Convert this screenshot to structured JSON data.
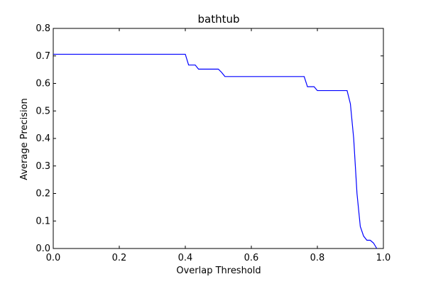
{
  "chart_data": {
    "type": "line",
    "title": "bathtub",
    "xlabel": "Overlap Threshold",
    "ylabel": "Average Precision",
    "xlim": [
      0.0,
      1.0
    ],
    "ylim": [
      0.0,
      0.8
    ],
    "xticks": [
      "0.0",
      "0.2",
      "0.4",
      "0.6",
      "0.8",
      "1.0"
    ],
    "yticks": [
      "0.0",
      "0.1",
      "0.2",
      "0.3",
      "0.4",
      "0.5",
      "0.6",
      "0.7",
      "0.8"
    ],
    "grid": false,
    "line_color": "#0000ff",
    "series": [
      {
        "x": [
          0.0,
          0.4,
          0.41,
          0.43,
          0.44,
          0.5,
          0.51,
          0.52,
          0.53,
          0.76,
          0.77,
          0.79,
          0.8,
          0.89,
          0.9,
          0.91,
          0.92,
          0.93,
          0.94,
          0.95,
          0.96,
          0.97,
          0.98
        ],
        "y": [
          0.706,
          0.706,
          0.667,
          0.667,
          0.652,
          0.652,
          0.64,
          0.625,
          0.625,
          0.625,
          0.588,
          0.588,
          0.574,
          0.574,
          0.526,
          0.4,
          0.2,
          0.08,
          0.045,
          0.03,
          0.03,
          0.02,
          0.0
        ]
      }
    ]
  }
}
